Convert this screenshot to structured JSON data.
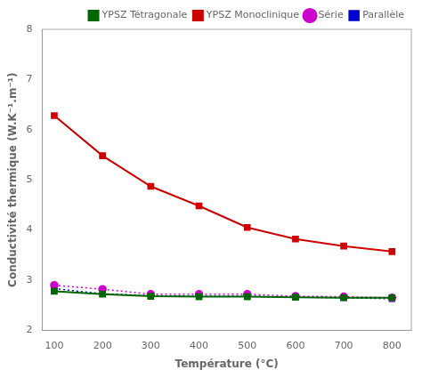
{
  "chart_data": {
    "type": "line",
    "x_label": "Température (°C)",
    "y_label": "Conductivité thermique (W.K⁻¹.m⁻¹)",
    "x": [
      100,
      200,
      300,
      400,
      500,
      600,
      700,
      800
    ],
    "series": [
      {
        "name": "YPSZ Tétragonale",
        "color": "#006600",
        "marker": "square",
        "line_style": "solid",
        "values": [
          2.78,
          2.72,
          2.68,
          2.67,
          2.67,
          2.66,
          2.65,
          2.65
        ]
      },
      {
        "name": "YPSZ Monoclinique",
        "color": "#cc0000",
        "marker": "square",
        "line_style": "solid",
        "values": [
          6.28,
          5.48,
          4.87,
          4.48,
          4.05,
          3.82,
          3.68,
          3.57
        ]
      },
      {
        "name": "Série",
        "color": "#cc00cc",
        "marker": "circle",
        "line_style": "dotted",
        "values": [
          2.9,
          2.82,
          2.72,
          2.72,
          2.72,
          2.68,
          2.67,
          2.65
        ]
      },
      {
        "name": "Parallèle",
        "color": "#0000cc",
        "marker": "square",
        "line_style": "dotted",
        "values": [
          2.83,
          2.73,
          2.69,
          2.68,
          2.68,
          2.66,
          2.65,
          2.63
        ]
      }
    ],
    "xlim": [
      75,
      840
    ],
    "ylim": [
      2,
      8
    ],
    "xticks": [
      100,
      200,
      300,
      400,
      500,
      600,
      700,
      800
    ],
    "yticks": [
      2,
      3,
      4,
      5,
      6,
      7,
      8
    ],
    "legend": "upper right",
    "grid": false
  }
}
